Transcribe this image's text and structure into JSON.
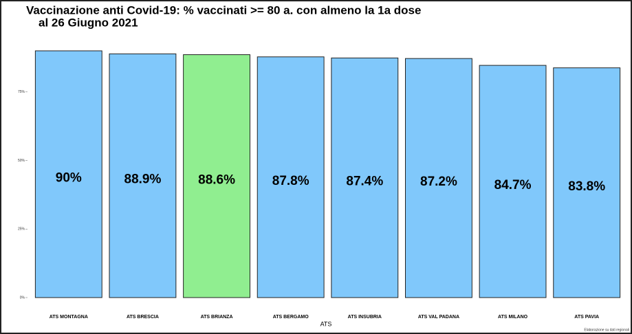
{
  "chart_data": {
    "type": "bar",
    "title": [
      "Vaccinazione anti Covid-19: % vaccinati >= 80 a. con almeno la 1a dose",
      "al 26 Giugno 2021"
    ],
    "categories": [
      "ATS MONTAGNA",
      "ATS BRESCIA",
      "ATS BRIANZA",
      "ATS BERGAMO",
      "ATS INSUBRIA",
      "ATS VAL PADANA",
      "ATS MILANO",
      "ATS PAVIA"
    ],
    "values": [
      90,
      88.9,
      88.6,
      87.8,
      87.4,
      87.2,
      84.7,
      83.8
    ],
    "value_labels": [
      "90%",
      "88.9%",
      "88.6%",
      "87.8%",
      "87.4%",
      "87.2%",
      "84.7%",
      "83.8%"
    ],
    "colors": [
      "#80c8fb",
      "#80c8fb",
      "#90ee90",
      "#80c8fb",
      "#80c8fb",
      "#80c8fb",
      "#80c8fb",
      "#80c8fb"
    ],
    "xlabel": "ATS",
    "caption": "Elaborazione su dati regionali",
    "ylim": [
      0,
      94
    ],
    "yticks": [
      {
        "value": 0,
        "label": "0%"
      },
      {
        "value": 25,
        "label": "25%"
      },
      {
        "value": 50,
        "label": "50%"
      },
      {
        "value": 75,
        "label": "75%"
      }
    ],
    "grid": false
  }
}
